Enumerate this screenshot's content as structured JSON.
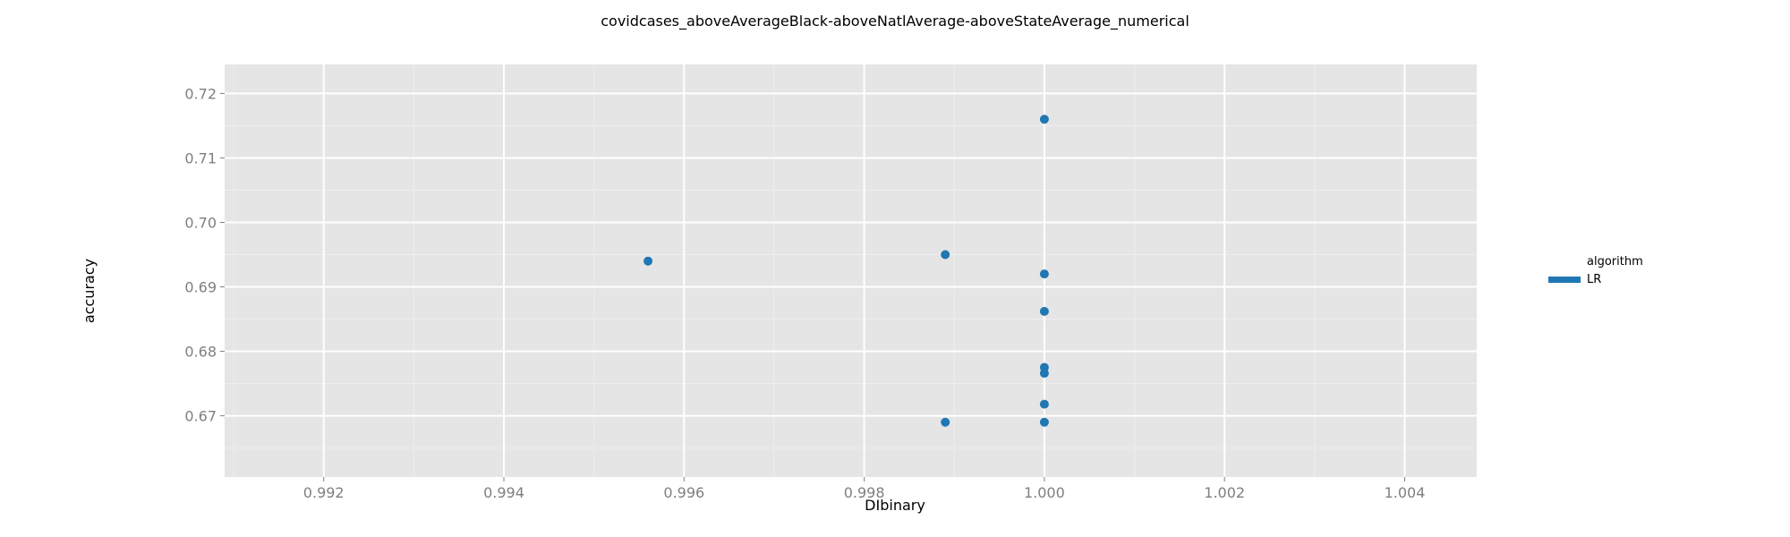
{
  "chart_data": {
    "type": "scatter",
    "title": "covidcases_aboveAverageBlack-aboveNatlAverage-aboveStateAverage_numerical",
    "xlabel": "DIbinary",
    "ylabel": "accuracy",
    "xlim": [
      0.9909,
      1.0048
    ],
    "ylim": [
      0.6605,
      0.7245
    ],
    "xticks": [
      0.992,
      0.994,
      0.996,
      0.998,
      1.0,
      1.002,
      1.004
    ],
    "xtick_labels": [
      "0.992",
      "0.994",
      "0.996",
      "0.998",
      "1.000",
      "1.002",
      "1.004"
    ],
    "yticks": [
      0.67,
      0.68,
      0.69,
      0.7,
      0.71,
      0.72
    ],
    "ytick_labels": [
      "0.67",
      "0.68",
      "0.69",
      "0.70",
      "0.71",
      "0.72"
    ],
    "grid": true,
    "legend": {
      "title": "algorithm",
      "position": "right",
      "entries": [
        {
          "label": "LR",
          "color": "#1f77b4"
        }
      ]
    },
    "series": [
      {
        "name": "LR",
        "color": "#1f77b4",
        "points": [
          {
            "x": 1.0,
            "y": 0.716
          },
          {
            "x": 0.9956,
            "y": 0.694
          },
          {
            "x": 0.9989,
            "y": 0.695
          },
          {
            "x": 1.0,
            "y": 0.692
          },
          {
            "x": 1.0,
            "y": 0.6862
          },
          {
            "x": 1.0,
            "y": 0.6775
          },
          {
            "x": 1.0,
            "y": 0.6766
          },
          {
            "x": 1.0,
            "y": 0.6718
          },
          {
            "x": 0.9989,
            "y": 0.669
          },
          {
            "x": 1.0,
            "y": 0.669
          }
        ]
      }
    ]
  },
  "colors": {
    "panel_background": "#e5e5e5",
    "grid_major": "#ffffff",
    "grid_minor": "#eeeeee",
    "point": "#1f77b4"
  }
}
